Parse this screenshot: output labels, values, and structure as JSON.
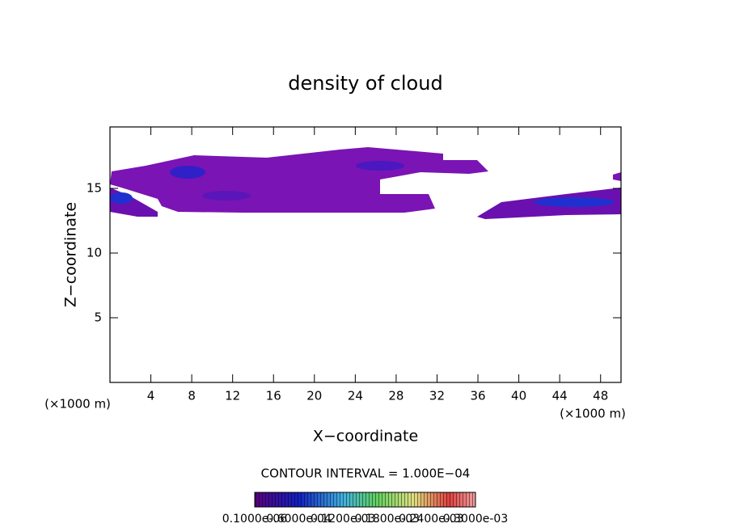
{
  "chart_data": {
    "type": "contour",
    "title": "density of cloud",
    "x_label": "X−coordinate",
    "y_label": "Z−coordinate",
    "x_unit_left": "(×1000 m)",
    "x_unit_right": "(×1000 m)",
    "contour_interval": "CONTOUR INTERVAL = 1.000E−04",
    "xlim": [
      0,
      50
    ],
    "ylim": [
      0,
      19.75
    ],
    "xticks": [
      4,
      8,
      12,
      16,
      20,
      24,
      28,
      32,
      36,
      40,
      44,
      48
    ],
    "yticks": [
      5,
      10,
      15
    ],
    "colorbar_labels": [
      "0.1000e-06",
      "0.6000e-04",
      "0.1200e-03",
      "0.1800e-03",
      "0.2400e-03",
      "0.3000e-03"
    ]
  }
}
